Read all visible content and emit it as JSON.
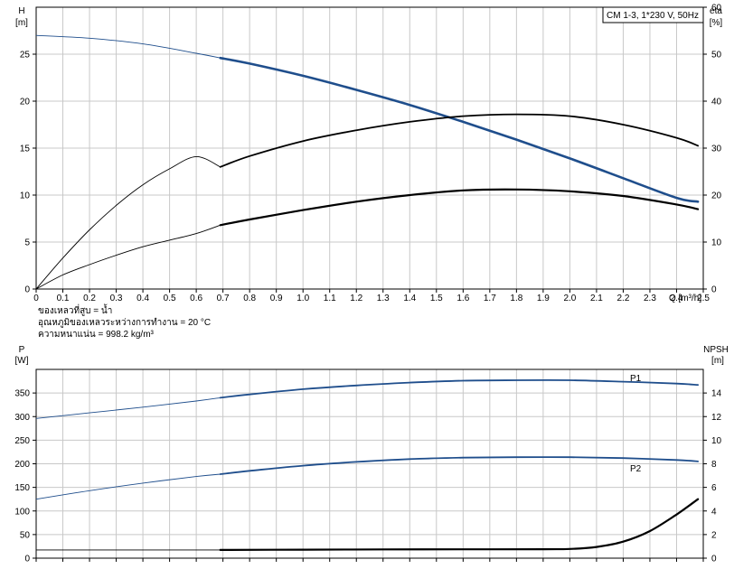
{
  "chart_data": [
    {
      "type": "line",
      "title": "CM 1-3, 1*230 V, 50Hz",
      "xlabel": "Q [m³/h]",
      "xlim": [
        0,
        2.5
      ],
      "x_ticks": [
        "0",
        "0.1",
        "0.2",
        "0.3",
        "0.4",
        "0.5",
        "0.6",
        "0.7",
        "0.8",
        "0.9",
        "1.0",
        "1.1",
        "1.2",
        "1.3",
        "1.4",
        "1.5",
        "1.6",
        "1.7",
        "1.8",
        "1.9",
        "2.0",
        "2.1",
        "2.2",
        "2.3",
        "2.4",
        "2.5"
      ],
      "y_left": {
        "label_line1": "H",
        "label_line2": "[m]",
        "ylim": [
          0,
          30
        ],
        "ticks": [
          "0",
          "5",
          "10",
          "15",
          "20",
          "25"
        ]
      },
      "y_right": {
        "label_line1": "eta",
        "label_line2": "[%]",
        "ylim": [
          0,
          60
        ],
        "ticks": [
          "0",
          "10",
          "20",
          "30",
          "40",
          "50",
          "60"
        ]
      },
      "grid": true,
      "notes": [
        "ของเหลวที่สูบ = น้ำ",
        "อุณหภูมิของเหลวระหว่างการทำงาน = 20 °C",
        "ความหนาแน่น = 998.2 kg/m³"
      ],
      "series": [
        {
          "axis": "left",
          "color": "#1f4e8c",
          "width": 1.8,
          "op_start": 0.69,
          "x": [
            0,
            0.2,
            0.4,
            0.6,
            0.69,
            0.8,
            1.0,
            1.2,
            1.4,
            1.6,
            1.8,
            2.0,
            2.2,
            2.4,
            2.48
          ],
          "y": [
            27,
            26.7,
            26.1,
            25.1,
            24.6,
            24.0,
            22.7,
            21.2,
            19.6,
            17.8,
            15.9,
            13.9,
            11.8,
            9.7,
            9.3
          ]
        },
        {
          "axis": "right",
          "color": "#000000",
          "width": 1.0,
          "op_start": 0.69,
          "x": [
            0,
            0.1,
            0.2,
            0.3,
            0.4,
            0.5,
            0.6,
            0.69,
            0.8,
            1.0,
            1.2,
            1.4,
            1.6,
            1.8,
            2.0,
            2.2,
            2.4,
            2.48
          ],
          "y": [
            0,
            6.6,
            12.6,
            17.8,
            22.2,
            25.6,
            28.2,
            26.0,
            28.3,
            31.5,
            33.8,
            35.6,
            36.8,
            37.2,
            36.8,
            35.0,
            32.2,
            30.5
          ]
        },
        {
          "axis": "left",
          "color": "#000000",
          "width": 1.0,
          "op_start": 0.69,
          "op_width": 2.2,
          "x": [
            0,
            0.1,
            0.2,
            0.3,
            0.4,
            0.5,
            0.6,
            0.69,
            0.8,
            1.0,
            1.2,
            1.4,
            1.6,
            1.8,
            2.0,
            2.2,
            2.4,
            2.48
          ],
          "y": [
            0,
            1.5,
            2.6,
            3.6,
            4.5,
            5.2,
            5.9,
            6.8,
            7.4,
            8.4,
            9.3,
            10.0,
            10.5,
            10.6,
            10.4,
            9.9,
            9.0,
            8.5
          ]
        }
      ]
    },
    {
      "type": "line",
      "xlim": [
        0,
        2.5
      ],
      "y_left": {
        "label_line1": "P",
        "label_line2": "[W]",
        "ylim": [
          0,
          400
        ],
        "ticks": [
          "0",
          "50",
          "100",
          "150",
          "200",
          "250",
          "300",
          "350"
        ]
      },
      "y_right": {
        "label_line1": "NPSH",
        "label_line2": "[m]",
        "ylim": [
          0,
          16
        ],
        "ticks": [
          "0",
          "2",
          "4",
          "6",
          "8",
          "10",
          "12",
          "14"
        ]
      },
      "grid": true,
      "series": [
        {
          "name": "P1",
          "axis": "left",
          "color": "#1f4e8c",
          "width": 1.0,
          "op_start": 0.69,
          "op_width": 1.8,
          "x": [
            0,
            0.2,
            0.4,
            0.6,
            0.69,
            0.8,
            1.0,
            1.2,
            1.4,
            1.6,
            1.8,
            2.0,
            2.2,
            2.4,
            2.48
          ],
          "y": [
            296,
            308,
            320,
            333,
            340,
            347,
            358,
            366,
            372,
            376,
            377,
            377,
            374,
            370,
            367
          ]
        },
        {
          "name": "P2",
          "axis": "left",
          "color": "#1f4e8c",
          "width": 1.0,
          "op_start": 0.69,
          "x": [
            0,
            0.2,
            0.4,
            0.6,
            0.69,
            0.8,
            1.0,
            1.2,
            1.4,
            1.6,
            1.8,
            2.0,
            2.2,
            2.4,
            2.48
          ],
          "y": [
            125,
            143,
            159,
            173,
            178,
            185,
            196,
            204,
            210,
            213,
            214,
            214,
            212,
            208,
            205
          ]
        },
        {
          "axis": "right",
          "color": "#000000",
          "width": 1.0,
          "op_start": 0.69,
          "op_width": 2.2,
          "x": [
            0,
            0.3,
            0.69,
            1.0,
            1.3,
            1.6,
            1.9,
            2.0,
            2.1,
            2.2,
            2.3,
            2.4,
            2.48
          ],
          "y": [
            0.7,
            0.7,
            0.7,
            0.72,
            0.74,
            0.75,
            0.76,
            0.78,
            0.95,
            1.4,
            2.3,
            3.7,
            5.0
          ]
        }
      ]
    }
  ]
}
